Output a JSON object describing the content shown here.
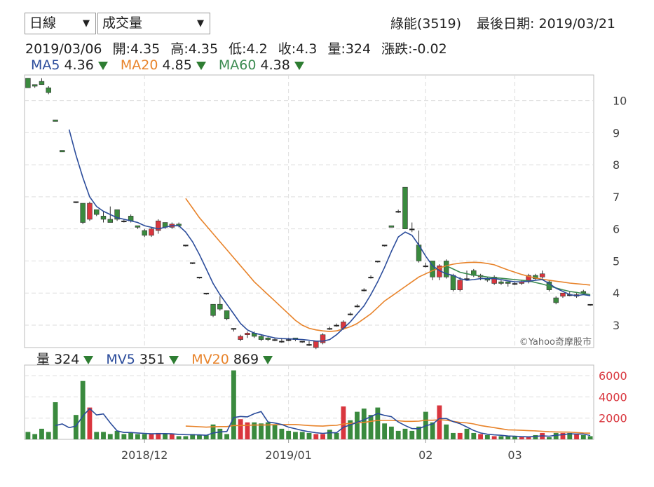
{
  "controls": {
    "period_label": "日線",
    "indicator_label": "成交量"
  },
  "header": {
    "stock": "綠能(3519)",
    "last_date_label": "最後日期: 2019/03/21"
  },
  "ohlc_info": {
    "date": "2019/03/06",
    "open": "開:4.35",
    "high": "高:4.35",
    "low": "低:4.2",
    "close": "收:4.3",
    "volume": "量:324",
    "change": "漲跌:-0.02"
  },
  "price_legend": [
    {
      "label": "MA5",
      "value": "4.36",
      "color": "#2b4c9b"
    },
    {
      "label": "MA20",
      "value": "4.85",
      "color": "#e8832a"
    },
    {
      "label": "MA60",
      "value": "4.38",
      "color": "#3a8a4f"
    }
  ],
  "volume_legend": [
    {
      "label": "量",
      "value": "324",
      "color": "#222222"
    },
    {
      "label": "MV5",
      "value": "351",
      "color": "#2b4c9b"
    },
    {
      "label": "MV20",
      "value": "869",
      "color": "#e8832a"
    }
  ],
  "watermark": "©Yahoo奇摩股市",
  "colors": {
    "up": "#d9363e",
    "down": "#3a8a3e",
    "ma5": "#2b4c9b",
    "ma20": "#e8832a",
    "ma60": "#3a8a4f"
  },
  "chart_data": [
    {
      "type": "candlestick",
      "ylim": [
        2.3,
        10.8
      ],
      "yticks": [
        3,
        4,
        5,
        6,
        7,
        8,
        9,
        10
      ],
      "xticks": [
        {
          "label": "2018/12",
          "index": 17
        },
        {
          "label": "2019/01",
          "index": 38
        },
        {
          "label": "02",
          "index": 58
        },
        {
          "label": "03",
          "index": 71
        }
      ],
      "ohlc": [
        [
          10.7,
          10.7,
          10.4,
          10.4
        ],
        [
          10.5,
          10.5,
          10.4,
          10.45
        ],
        [
          10.6,
          10.7,
          10.5,
          10.5
        ],
        [
          10.4,
          10.45,
          10.2,
          10.25
        ],
        [
          9.4,
          9.4,
          9.35,
          9.35
        ],
        [
          8.45,
          8.45,
          8.4,
          8.4
        ],
        [
          null,
          null,
          null,
          null
        ],
        [
          6.85,
          6.85,
          6.8,
          6.85
        ],
        [
          6.8,
          6.8,
          6.15,
          6.2
        ],
        [
          6.3,
          6.85,
          6.25,
          6.8
        ],
        [
          6.6,
          6.6,
          6.4,
          6.45
        ],
        [
          6.4,
          6.55,
          6.2,
          6.3
        ],
        [
          6.3,
          6.7,
          6.2,
          6.2
        ],
        [
          6.6,
          6.6,
          6.25,
          6.3
        ],
        [
          6.25,
          6.3,
          6.2,
          6.25
        ],
        [
          6.4,
          6.45,
          6.2,
          6.25
        ],
        [
          6.1,
          6.1,
          6.0,
          6.05
        ],
        [
          5.95,
          6.0,
          5.75,
          5.8
        ],
        [
          5.8,
          6.05,
          5.75,
          6.0
        ],
        [
          5.95,
          6.3,
          5.85,
          6.25
        ],
        [
          6.2,
          6.2,
          6.0,
          6.05
        ],
        [
          6.05,
          6.2,
          6.0,
          6.15
        ],
        [
          6.15,
          6.2,
          6.05,
          6.1
        ],
        [
          5.5,
          5.5,
          5.45,
          5.5
        ],
        [
          4.95,
          4.95,
          4.9,
          4.95
        ],
        [
          4.5,
          4.5,
          4.45,
          4.5
        ],
        [
          4.0,
          4.0,
          3.95,
          4.0
        ],
        [
          3.65,
          3.65,
          3.25,
          3.3
        ],
        [
          3.65,
          3.9,
          3.45,
          3.5
        ],
        [
          3.45,
          3.45,
          3.15,
          3.2
        ],
        [
          2.9,
          2.9,
          2.8,
          2.9
        ],
        [
          2.55,
          2.7,
          2.5,
          2.65
        ],
        [
          2.7,
          2.8,
          2.6,
          2.75
        ],
        [
          2.75,
          2.8,
          2.6,
          2.65
        ],
        [
          2.65,
          2.7,
          2.5,
          2.55
        ],
        [
          2.6,
          2.65,
          2.5,
          2.55
        ],
        [
          2.55,
          2.6,
          2.5,
          2.55
        ],
        [
          2.5,
          2.6,
          2.45,
          2.5
        ],
        [
          2.55,
          2.6,
          2.5,
          2.55
        ],
        [
          2.6,
          2.6,
          2.5,
          2.55
        ],
        [
          2.5,
          2.5,
          2.45,
          2.5
        ],
        [
          2.4,
          2.5,
          2.35,
          2.4
        ],
        [
          2.3,
          2.5,
          2.25,
          2.5
        ],
        [
          2.45,
          2.75,
          2.4,
          2.7
        ],
        [
          2.9,
          2.95,
          2.85,
          2.9
        ],
        [
          3.0,
          3.05,
          2.95,
          3.0
        ],
        [
          2.9,
          3.15,
          2.85,
          3.1
        ],
        [
          3.35,
          3.4,
          3.3,
          3.35
        ],
        [
          3.6,
          3.65,
          3.55,
          3.6
        ],
        [
          4.1,
          4.15,
          4.05,
          4.1
        ],
        [
          4.5,
          4.55,
          4.45,
          4.5
        ],
        [
          5.0,
          5.0,
          4.95,
          5.0
        ],
        [
          5.5,
          5.5,
          5.45,
          5.5
        ],
        [
          6.1,
          6.1,
          6.05,
          6.05
        ],
        [
          6.55,
          6.6,
          6.5,
          6.55
        ],
        [
          7.3,
          7.3,
          6.0,
          6.0
        ],
        [
          6.0,
          6.2,
          5.9,
          6.0
        ],
        [
          5.5,
          5.95,
          4.95,
          5.0
        ],
        [
          4.85,
          4.95,
          4.8,
          4.85
        ],
        [
          5.0,
          5.0,
          4.4,
          4.5
        ],
        [
          4.5,
          4.9,
          4.4,
          4.85
        ],
        [
          5.0,
          5.05,
          4.45,
          4.5
        ],
        [
          4.55,
          4.6,
          4.05,
          4.1
        ],
        [
          4.1,
          4.5,
          4.05,
          4.4
        ],
        [
          4.45,
          4.7,
          4.4,
          4.45
        ],
        [
          4.7,
          4.75,
          4.5,
          4.55
        ],
        [
          4.5,
          4.6,
          4.4,
          4.55
        ],
        [
          4.45,
          4.5,
          4.35,
          4.4
        ],
        [
          4.3,
          4.55,
          4.25,
          4.5
        ],
        [
          4.35,
          4.4,
          4.25,
          4.3
        ],
        [
          4.35,
          4.35,
          4.2,
          4.3
        ],
        [
          4.3,
          4.35,
          4.25,
          4.3
        ],
        [
          4.3,
          4.4,
          4.25,
          4.35
        ],
        [
          4.35,
          4.6,
          4.3,
          4.55
        ],
        [
          4.55,
          4.6,
          4.4,
          4.45
        ],
        [
          4.5,
          4.7,
          4.45,
          4.6
        ],
        [
          4.35,
          4.4,
          4.05,
          4.1
        ],
        [
          3.85,
          3.9,
          3.65,
          3.7
        ],
        [
          3.9,
          4.0,
          3.85,
          4.0
        ],
        [
          3.95,
          4.05,
          3.9,
          3.95
        ],
        [
          3.9,
          4.0,
          3.85,
          3.95
        ],
        [
          4.05,
          4.1,
          3.95,
          4.0
        ],
        [
          3.65,
          3.65,
          3.6,
          3.65
        ]
      ],
      "ma5": [
        null,
        null,
        null,
        null,
        null,
        null,
        9.1,
        8.3,
        7.6,
        7.0,
        6.7,
        6.55,
        6.45,
        6.35,
        6.3,
        6.25,
        6.2,
        6.1,
        6.05,
        6.0,
        6.05,
        6.1,
        6.1,
        5.9,
        5.6,
        5.2,
        4.75,
        4.3,
        3.95,
        3.65,
        3.35,
        3.05,
        2.85,
        2.75,
        2.7,
        2.65,
        2.6,
        2.58,
        2.57,
        2.56,
        2.55,
        2.53,
        2.5,
        2.5,
        2.55,
        2.7,
        2.9,
        3.1,
        3.35,
        3.6,
        3.95,
        4.35,
        4.8,
        5.3,
        5.75,
        5.9,
        5.8,
        5.5,
        5.15,
        4.85,
        4.7,
        4.6,
        4.55,
        4.45,
        4.4,
        4.42,
        4.45,
        4.45,
        4.45,
        4.42,
        4.38,
        4.35,
        4.35,
        4.37,
        4.4,
        4.42,
        4.3,
        4.15,
        4.05,
        3.95,
        3.92,
        3.95,
        3.92
      ],
      "ma20": [
        null,
        null,
        null,
        null,
        null,
        null,
        null,
        null,
        null,
        null,
        null,
        null,
        null,
        null,
        null,
        null,
        null,
        null,
        null,
        null,
        null,
        null,
        null,
        6.95,
        6.65,
        6.35,
        6.1,
        5.85,
        5.6,
        5.35,
        5.1,
        4.85,
        4.6,
        4.35,
        4.15,
        3.95,
        3.75,
        3.55,
        3.35,
        3.15,
        3.0,
        2.9,
        2.85,
        2.82,
        2.8,
        2.82,
        2.88,
        2.95,
        3.05,
        3.2,
        3.35,
        3.55,
        3.75,
        3.9,
        4.05,
        4.2,
        4.35,
        4.5,
        4.6,
        4.7,
        4.78,
        4.85,
        4.9,
        4.93,
        4.95,
        4.96,
        4.95,
        4.92,
        4.88,
        4.8,
        4.72,
        4.65,
        4.58,
        4.52,
        4.47,
        4.43,
        4.4,
        4.37,
        4.34,
        4.31,
        4.29,
        4.27,
        4.25
      ],
      "ma60": [
        null,
        null,
        null,
        null,
        null,
        null,
        null,
        null,
        null,
        null,
        null,
        null,
        null,
        null,
        null,
        null,
        null,
        null,
        null,
        null,
        null,
        null,
        null,
        null,
        null,
        null,
        null,
        null,
        null,
        null,
        null,
        null,
        null,
        null,
        null,
        null,
        null,
        null,
        null,
        null,
        null,
        null,
        null,
        null,
        null,
        null,
        null,
        null,
        null,
        null,
        null,
        null,
        null,
        null,
        null,
        null,
        null,
        null,
        null,
        null,
        null,
        4.85,
        4.75,
        4.65,
        4.6,
        4.56,
        4.53,
        4.5,
        4.48,
        4.46,
        4.44,
        4.42,
        4.4,
        4.38,
        4.33,
        4.28,
        4.22,
        4.16,
        4.1,
        4.05,
        4.02,
        3.98,
        3.95
      ]
    },
    {
      "type": "bar",
      "ylim": [
        0,
        7000
      ],
      "yticks": [
        2000,
        4000,
        6000
      ],
      "volume": [
        700,
        500,
        1000,
        700,
        3500,
        0,
        0,
        2300,
        5500,
        3000,
        700,
        700,
        500,
        800,
        500,
        600,
        500,
        500,
        500,
        600,
        500,
        500,
        300,
        300,
        500,
        400,
        400,
        1400,
        1000,
        500,
        6500,
        1900,
        1600,
        1600,
        1500,
        1600,
        1400,
        1000,
        800,
        700,
        700,
        600,
        500,
        500,
        900,
        600,
        3100,
        1800,
        2600,
        2900,
        2300,
        3000,
        1500,
        1200,
        800,
        1000,
        800,
        1200,
        2600,
        1600,
        3200,
        1400,
        600,
        600,
        1000,
        600,
        500,
        400,
        300,
        300,
        300,
        300,
        200,
        200,
        400,
        600,
        200,
        600,
        600,
        600,
        500,
        400,
        300
      ],
      "mv5": [
        null,
        null,
        null,
        null,
        1300,
        1450,
        1100,
        1250,
        2200,
        2900,
        2300,
        2400,
        1550,
        800,
        650,
        650,
        600,
        560,
        520,
        540,
        540,
        520,
        470,
        440,
        430,
        420,
        380,
        600,
        700,
        740,
        2060,
        2160,
        2120,
        2420,
        2620,
        1640,
        1540,
        1400,
        1150,
        1000,
        840,
        720,
        620,
        560,
        620,
        620,
        1140,
        1360,
        1600,
        1840,
        2140,
        2440,
        2260,
        2140,
        1640,
        1300,
        1020,
        1000,
        1280,
        1440,
        1960,
        1960,
        1680,
        1480,
        1160,
        840,
        600,
        480,
        420,
        380,
        320,
        300,
        260,
        240,
        280,
        340,
        300,
        380,
        440,
        520,
        500,
        500,
        360
      ],
      "mv20": [
        null,
        null,
        null,
        null,
        null,
        null,
        null,
        null,
        null,
        null,
        null,
        null,
        null,
        null,
        null,
        null,
        null,
        null,
        null,
        null,
        null,
        null,
        null,
        1250,
        1220,
        1190,
        1150,
        1180,
        1200,
        1200,
        1300,
        1300,
        1320,
        1350,
        1350,
        1360,
        1380,
        1390,
        1400,
        1400,
        1350,
        1300,
        1270,
        1250,
        1300,
        1320,
        1450,
        1500,
        1560,
        1600,
        1700,
        1780,
        1780,
        1780,
        1750,
        1700,
        1700,
        1720,
        1800,
        1800,
        1850,
        1800,
        1700,
        1600,
        1550,
        1450,
        1300,
        1200,
        1100,
        1000,
        900,
        880,
        850,
        820,
        800,
        760,
        720,
        700,
        690,
        680,
        640,
        600,
        580
      ]
    }
  ]
}
